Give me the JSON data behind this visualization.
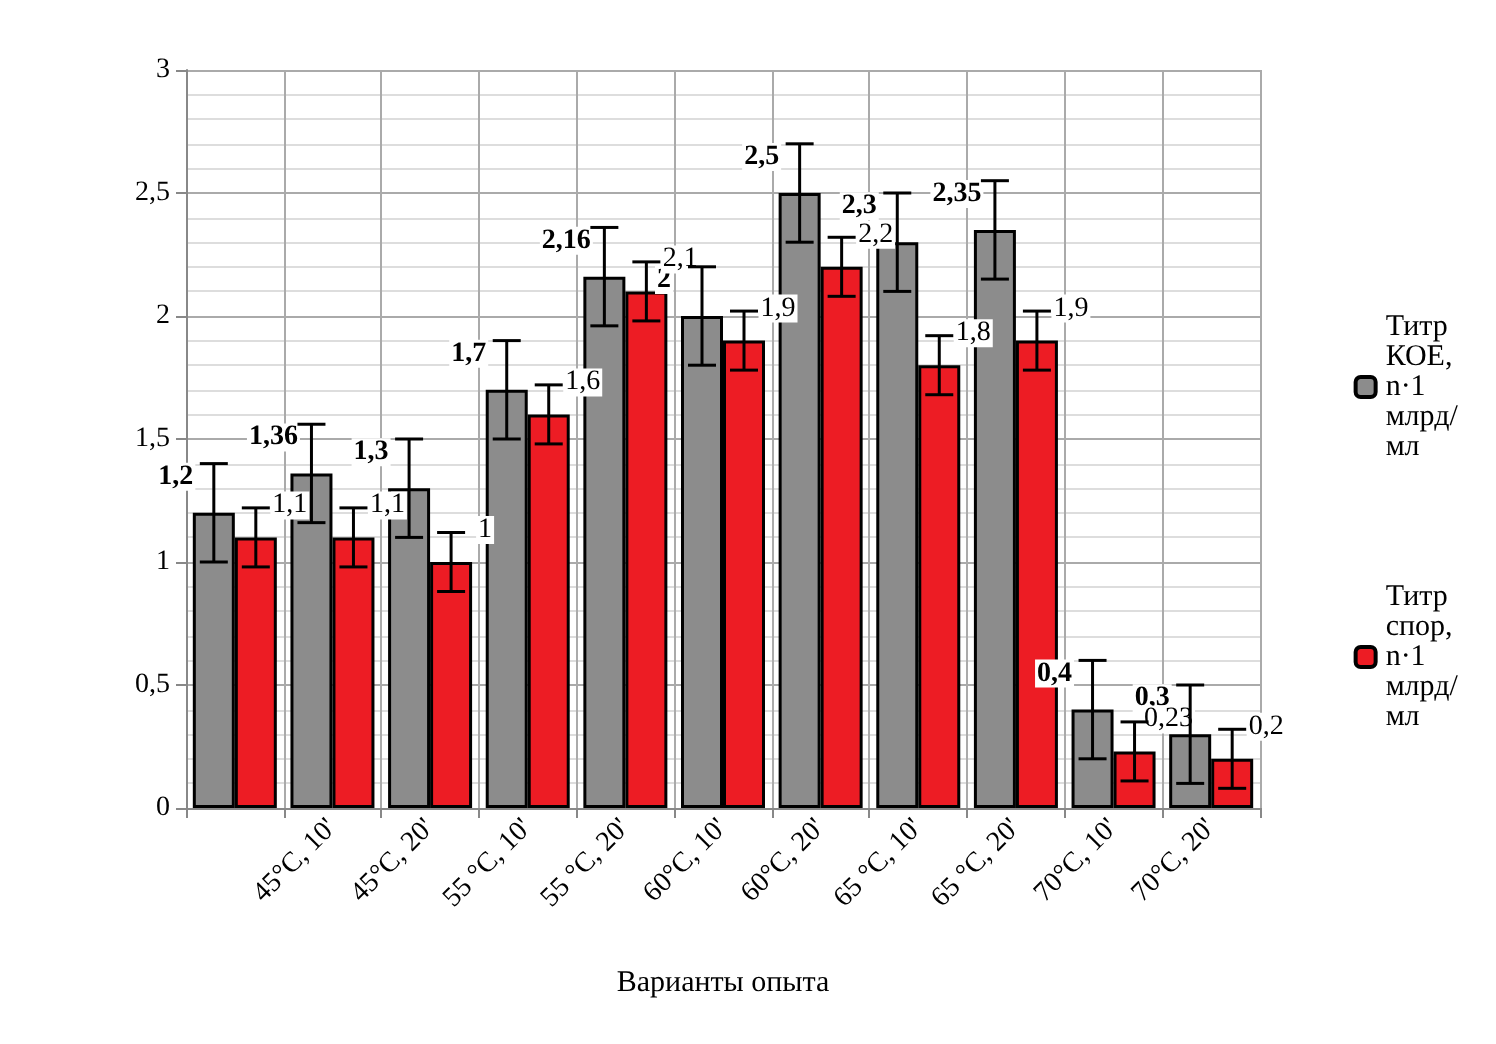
{
  "chart_data": {
    "type": "bar",
    "xlabel": "Варианты опыта",
    "categories": [
      null,
      "45°C, 10'",
      "45°C, 20'",
      "55 °C, 10'",
      "55 °C, 20'",
      "60°C, 10'",
      "60°C, 20'",
      "65 °C, 10'",
      "65 °C, 20'",
      "70°C, 10'",
      "70°C, 20'"
    ],
    "series": [
      {
        "name": "Титр КОЕ, n·1 млрд/мл",
        "color": "#8c8c8c",
        "values": [
          1.2,
          1.36,
          1.3,
          1.7,
          2.16,
          2,
          2.5,
          2.3,
          2.35,
          0.4,
          0.3
        ],
        "errors": [
          0.2,
          0.2,
          0.2,
          0.2,
          0.2,
          0.2,
          0.2,
          0.2,
          0.2,
          0.2,
          0.2
        ],
        "value_labels": [
          "1,2",
          "1,36",
          "1,3",
          "1,7",
          "2,16",
          "2",
          "2,5",
          "2,3",
          "2,35",
          "0,4",
          "0,3"
        ]
      },
      {
        "name": "Титр спор, n·1 млрд/мл",
        "color": "#ed1c24",
        "values": [
          1.1,
          1.1,
          1,
          1.6,
          2.1,
          1.9,
          2.2,
          1.8,
          1.9,
          0.23,
          0.2
        ],
        "errors": [
          0.12,
          0.12,
          0.12,
          0.12,
          0.12,
          0.12,
          0.12,
          0.12,
          0.12,
          0.12,
          0.12
        ],
        "value_labels": [
          "1,1",
          "1,1",
          "1",
          "1,6",
          "2,1",
          "1,9",
          "2,2",
          "1,8",
          "1,9",
          "0,23",
          "0,2"
        ]
      }
    ],
    "ylim": [
      0,
      3
    ],
    "yticks": [
      0,
      {
        "value": 0.5,
        "label": "0,5"
      },
      1,
      {
        "value": 1.5,
        "label": "1,5"
      },
      2,
      {
        "value": 2.5,
        "label": "2,5"
      },
      3
    ],
    "grid": true,
    "legend": "right"
  }
}
